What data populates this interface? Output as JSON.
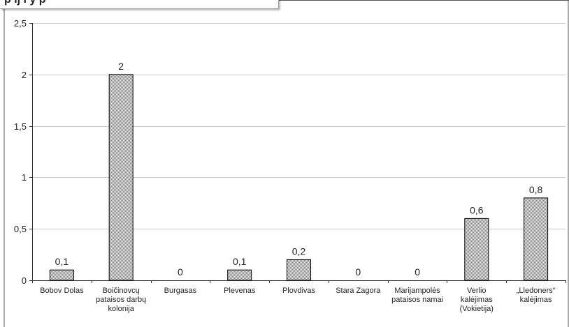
{
  "header": {
    "title": "p     ij     i     y   p"
  },
  "chart_data": {
    "type": "bar",
    "categories": [
      [
        "Bobov Dolas"
      ],
      [
        "Boičinovcų",
        "pataisos darbų",
        "kolonija"
      ],
      [
        "Burgasas"
      ],
      [
        "Plevenas"
      ],
      [
        "Plovdivas"
      ],
      [
        "Stara Zagora"
      ],
      [
        "Marijampolės",
        "pataisos namai"
      ],
      [
        "Verlio",
        "kalėjimas",
        "(Vokietija)"
      ],
      [
        "„Lledoners“",
        "kalėjimas"
      ]
    ],
    "values": [
      0.1,
      2,
      0,
      0.1,
      0.2,
      0,
      0,
      0.6,
      0.8
    ],
    "value_labels": [
      "0,1",
      "2",
      "0",
      "0,1",
      "0,2",
      "0",
      "0",
      "0,6",
      "0,8"
    ],
    "yticks": [
      0,
      0.5,
      1,
      1.5,
      2,
      2.5
    ],
    "ytick_labels": [
      "0",
      "0,5",
      "1",
      "1,5",
      "2",
      "2,5"
    ],
    "ylim": [
      0,
      2.5
    ],
    "grid": true,
    "bar_fill": "#d9d9d9",
    "bar_stroke": "#000000",
    "grid_color": "#c8c8c8"
  }
}
